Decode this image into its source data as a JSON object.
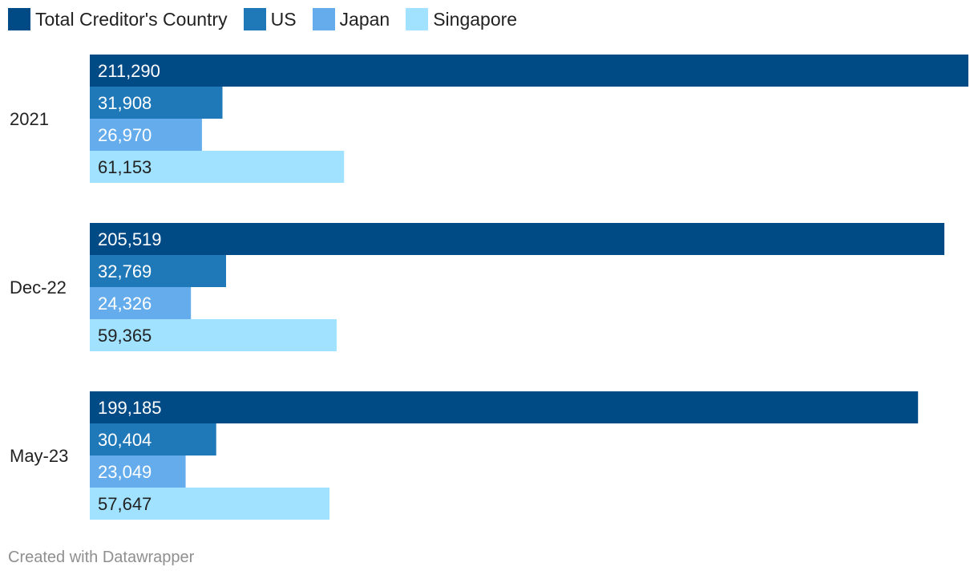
{
  "legend": [
    {
      "label": "Total Creditor's Country",
      "color": "#004a86"
    },
    {
      "label": "US",
      "color": "#1f78b8"
    },
    {
      "label": "Japan",
      "color": "#64aceb"
    },
    {
      "label": "Singapore",
      "color": "#a0e2ff"
    }
  ],
  "footer": "Created with Datawrapper",
  "chart_data": {
    "type": "bar",
    "orientation": "horizontal",
    "categories": [
      "2021",
      "Dec-22",
      "May-23"
    ],
    "series": [
      {
        "name": "Total Creditor's Country",
        "color": "#004a86",
        "label_color": "#ffffff",
        "values": [
          211290,
          205519,
          199185
        ],
        "labels": [
          "211,290",
          "205,519",
          "199,185"
        ]
      },
      {
        "name": "US",
        "color": "#1f78b8",
        "label_color": "#ffffff",
        "values": [
          31908,
          32769,
          30404
        ],
        "labels": [
          "31,908",
          "32,769",
          "30,404"
        ]
      },
      {
        "name": "Japan",
        "color": "#64aceb",
        "label_color": "#ffffff",
        "values": [
          26970,
          24326,
          23049
        ],
        "labels": [
          "26,970",
          "24,326",
          "23,049"
        ]
      },
      {
        "name": "Singapore",
        "color": "#a0e2ff",
        "label_color": "#222222",
        "values": [
          61153,
          59365,
          57647
        ],
        "labels": [
          "61,153",
          "59,365",
          "57,647"
        ]
      }
    ],
    "xlim": [
      0,
      211290
    ],
    "grid": false,
    "legend_position": "top-left"
  }
}
